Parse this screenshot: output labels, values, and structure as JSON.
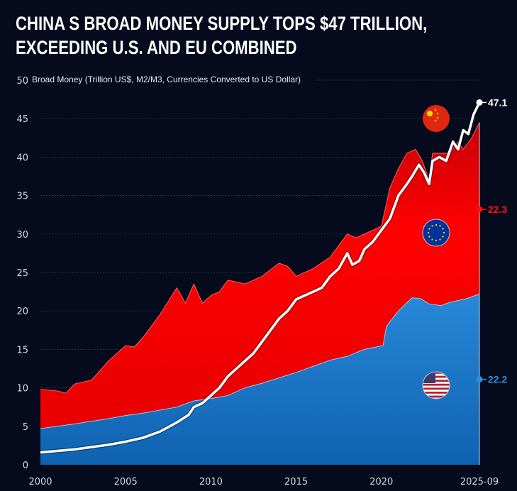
{
  "chart_data": {
    "type": "area",
    "title": "CHINA S BROAD MONEY SUPPLY TOPS $47 TRILLION, EXCEEDING U.S. AND EU COMBINED",
    "ylabel": "Broad Money (Trillion US$, M2/M3, Currencies Converted to US Dollar)",
    "xlabel": "",
    "ylim": [
      0,
      50
    ],
    "xlim": [
      2000,
      2025.75
    ],
    "yticks": [
      0,
      5,
      10,
      15,
      20,
      25,
      30,
      35,
      40,
      45,
      50
    ],
    "xticks": [
      "2000",
      "2005",
      "2010",
      "2015",
      "2020",
      "2025-09"
    ],
    "grid": true,
    "stacked": true,
    "series": [
      {
        "key": "us",
        "flag": "us-flag",
        "color": "#1a78c8",
        "end_label": "22.2",
        "x": [
          2000,
          2002,
          2004,
          2005,
          2006,
          2008,
          2009,
          2010,
          2011,
          2012,
          2013,
          2014,
          2015,
          2016,
          2017,
          2018,
          2019,
          2020.1,
          2020.3,
          2021,
          2021.8,
          2022.3,
          2022.8,
          2023.5,
          2024,
          2025,
          2025.75
        ],
        "y": [
          4.7,
          5.3,
          6.0,
          6.4,
          6.7,
          7.5,
          8.3,
          8.6,
          9.0,
          10.0,
          10.6,
          11.3,
          12.0,
          12.8,
          13.6,
          14.1,
          15.0,
          15.5,
          18.0,
          20.0,
          21.7,
          21.6,
          20.9,
          20.7,
          21.1,
          21.6,
          22.2
        ]
      },
      {
        "key": "eu",
        "flag": "eu-flag",
        "color": "#ff0000",
        "end_label": "22.3",
        "total_x": [
          2000,
          2001,
          2001.5,
          2002,
          2003,
          2004,
          2005,
          2005.5,
          2006,
          2007,
          2008,
          2008.5,
          2009,
          2009.5,
          2010,
          2010.5,
          2011,
          2012,
          2013,
          2014,
          2014.5,
          2015,
          2016,
          2017,
          2018,
          2018.5,
          2019,
          2020,
          2020.5,
          2021,
          2021.5,
          2022,
          2022.4,
          2022.8,
          2023,
          2023.5,
          2024,
          2024.5,
          2024.8,
          2025.3,
          2025.75
        ],
        "total_y": [
          9.8,
          9.6,
          9.3,
          10.5,
          11.0,
          13.5,
          15.5,
          15.3,
          16.5,
          19.5,
          23.0,
          21.0,
          23.5,
          21.0,
          22.0,
          22.5,
          24.0,
          23.5,
          24.5,
          26.2,
          25.8,
          24.5,
          25.5,
          27.0,
          30.0,
          29.5,
          30.0,
          31.0,
          36.0,
          38.5,
          40.5,
          41.0,
          39.5,
          37.0,
          40.5,
          40.5,
          40.5,
          42.0,
          41.0,
          42.5,
          44.5
        ]
      },
      {
        "key": "china",
        "flag": "china-flag",
        "color": "#ffffff",
        "end_label": "47.1",
        "x": [
          2000,
          2001,
          2002,
          2003,
          2004,
          2005,
          2006,
          2007,
          2008,
          2008.7,
          2009,
          2009.5,
          2010,
          2010.5,
          2011,
          2011.5,
          2012,
          2012.5,
          2013,
          2013.5,
          2014,
          2014.5,
          2015,
          2015.5,
          2016,
          2016.5,
          2017,
          2017.5,
          2018,
          2018.3,
          2018.7,
          2019,
          2019.5,
          2020,
          2020.5,
          2021,
          2021.5,
          2021.8,
          2022.2,
          2022.5,
          2022.8,
          2023,
          2023.4,
          2023.8,
          2024.2,
          2024.5,
          2024.8,
          2025.1,
          2025.4,
          2025.75
        ],
        "y": [
          1.6,
          1.8,
          2.0,
          2.3,
          2.6,
          3.0,
          3.5,
          4.3,
          5.5,
          6.5,
          7.5,
          8.0,
          9.0,
          10.0,
          11.5,
          12.5,
          13.5,
          14.5,
          16.0,
          17.5,
          19.0,
          20.0,
          21.5,
          22.0,
          22.5,
          23.0,
          24.5,
          25.5,
          27.5,
          26.0,
          26.5,
          28.0,
          29.0,
          30.5,
          32.0,
          35.0,
          36.5,
          37.5,
          39.0,
          38.0,
          36.5,
          39.5,
          40.0,
          39.5,
          42.0,
          41.0,
          43.5,
          43.0,
          45.5,
          47.1
        ]
      }
    ]
  }
}
